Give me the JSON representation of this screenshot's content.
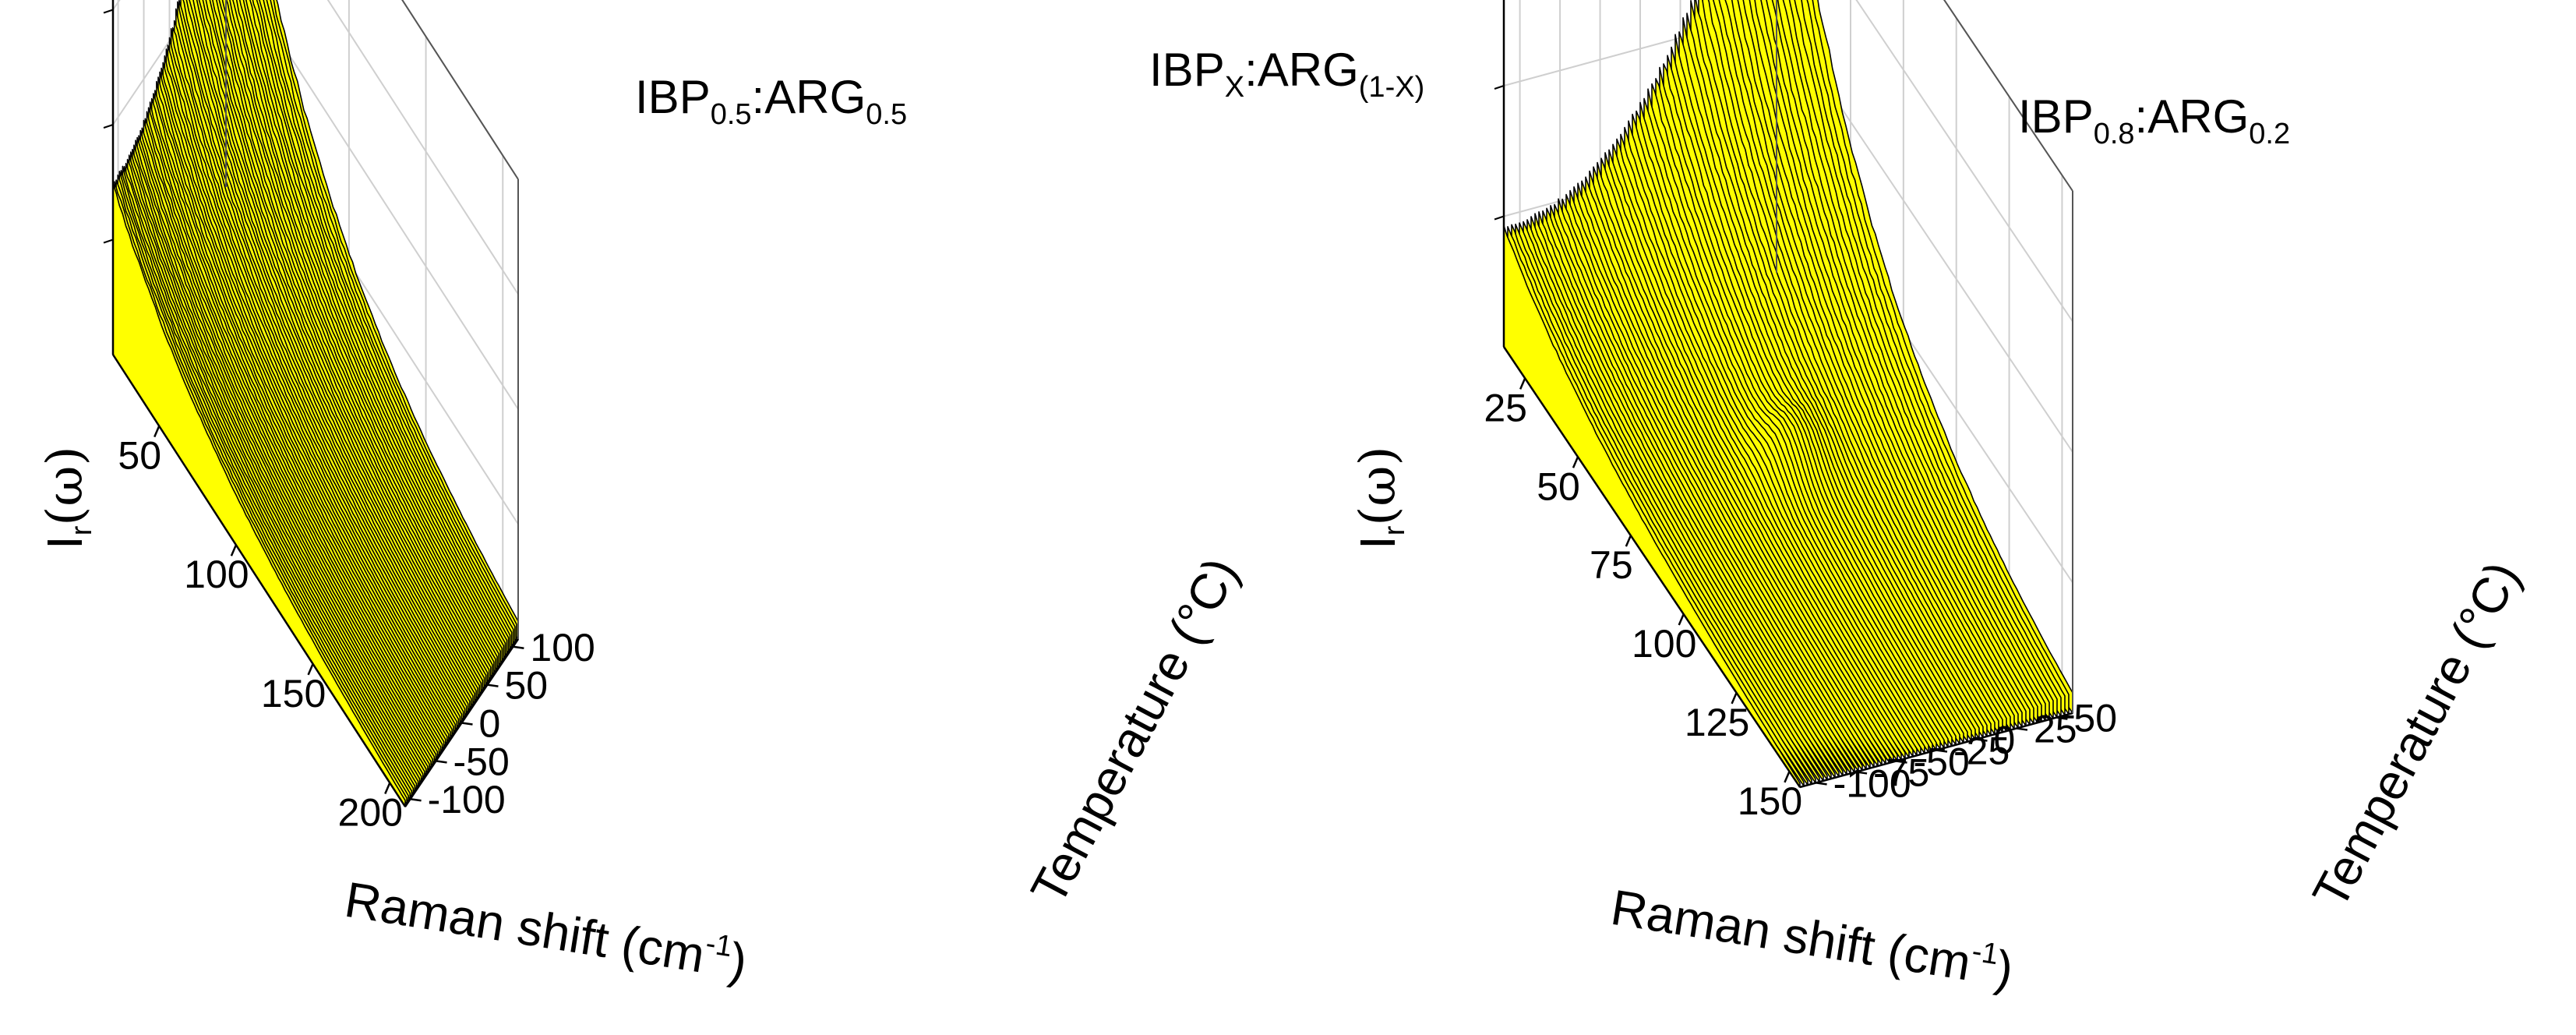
{
  "figure_title": {
    "base1": "IBP",
    "sub1": "X",
    "mid": ":ARG",
    "sub2": "(1-X)"
  },
  "chart_data": [
    {
      "type": "surface",
      "title": {
        "base1": "IBP",
        "sub1": "0.5",
        "mid": ":ARG",
        "sub2": "0.5"
      },
      "xlabel": "Raman shift (cm-1)",
      "xlabel_parts": {
        "main": "Raman shift (cm",
        "sup": "-1",
        "end": ")"
      },
      "ylabel": "Temperature (°C)",
      "zlabel_parts": {
        "main": "I",
        "sub": "r",
        "rest": "(ω)"
      },
      "xlim": [
        20,
        210
      ],
      "ylim": [
        -110,
        110
      ],
      "x_ticks": [
        50,
        100,
        150,
        200
      ],
      "y_ticks": [
        -100,
        -50,
        0,
        50,
        100
      ],
      "z_ticks_labeled": false,
      "grid": true,
      "surface_color": "#ffff00",
      "line_color": "#000000",
      "peak_location": {
        "x": 20,
        "y": 100
      },
      "peak_relative_height": 1.0,
      "edge_relative_height_at_min_temperature": 0.35
    },
    {
      "type": "surface",
      "title": {
        "base1": "IBP",
        "sub1": "0.8",
        "mid": ":ARG",
        "sub2": "0.2"
      },
      "xlabel": "Raman shift (cm-1)",
      "xlabel_parts": {
        "main": "Raman shift (cm",
        "sup": "-1",
        "end": ")"
      },
      "ylabel": "Temperature (°C)",
      "zlabel_parts": {
        "main": "I",
        "sub": "r",
        "rest": "(ω)"
      },
      "xlim": [
        15,
        155
      ],
      "ylim": [
        -110,
        60
      ],
      "x_ticks": [
        25,
        50,
        75,
        100,
        125,
        150
      ],
      "y_ticks": [
        -100,
        -75,
        -50,
        -25,
        0,
        25,
        50
      ],
      "z_ticks_labeled": false,
      "grid": true,
      "surface_color": "#ffff00",
      "line_color": "#000000",
      "peak_location": {
        "x": 15,
        "y": 50
      },
      "peak_relative_height": 1.0,
      "secondary_feature": {
        "x": 80,
        "y_range": [
          -30,
          10
        ]
      },
      "edge_relative_height_at_min_temperature": 0.2
    }
  ]
}
